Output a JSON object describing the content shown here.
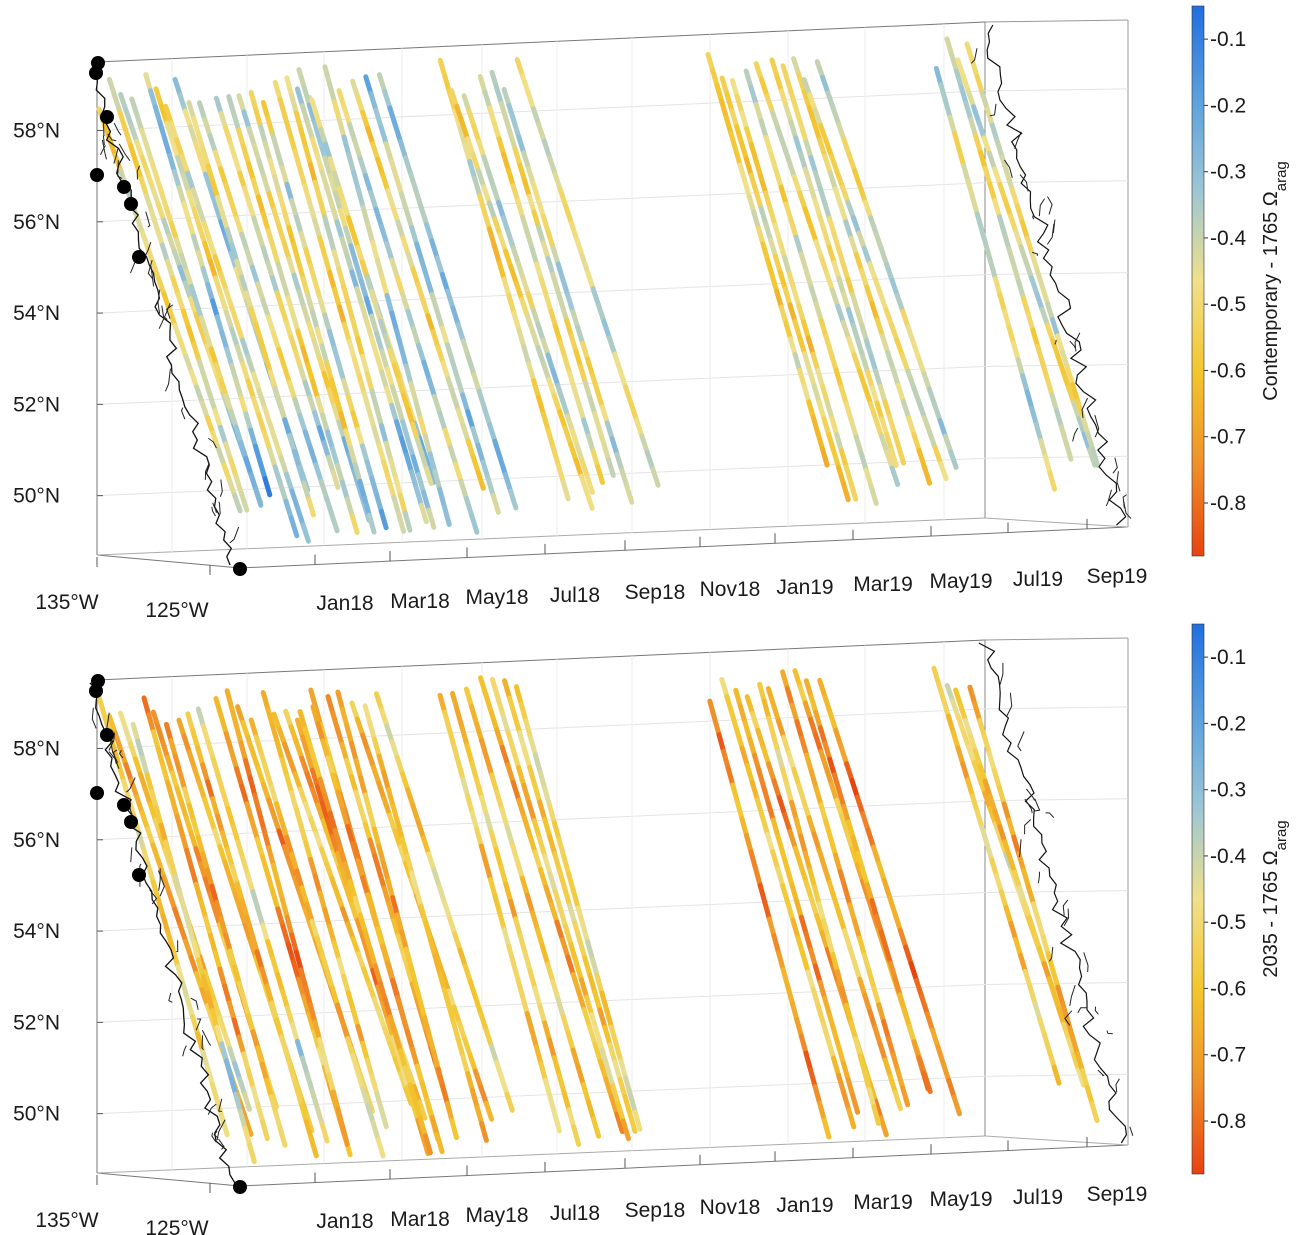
{
  "chart_data": [
    {
      "type": "scatter",
      "description_kind": "3-D ship-track time series of aragonite saturation change",
      "xlabel": "",
      "ylabel": "",
      "longitude_ticks": [
        "135°W",
        "125°W"
      ],
      "latitude_ticks": [
        "50°N",
        "52°N",
        "54°N",
        "56°N",
        "58°N"
      ],
      "latitude_values": [
        50,
        52,
        54,
        56,
        58
      ],
      "time_ticks": [
        "Jan18",
        "Mar18",
        "May18",
        "Jul18",
        "Sep18",
        "Nov18",
        "Jan19",
        "Mar19",
        "May19",
        "Jul19",
        "Sep19"
      ],
      "time_range": [
        "2017-09",
        "2019-09"
      ],
      "lat_range": [
        48.7,
        59.5
      ],
      "colorbar": {
        "label_main": "Contemporary - 1765 Ω",
        "label_sub": "arag",
        "ticks": [
          -0.1,
          -0.2,
          -0.3,
          -0.4,
          -0.5,
          -0.6,
          -0.7,
          -0.8
        ],
        "range": [
          -0.88,
          -0.05
        ],
        "colormap": [
          "#1f6fe0",
          "#5aa0de",
          "#9cc6d6",
          "#f0e08a",
          "#f3c52e",
          "#f0902a",
          "#e8420f"
        ]
      },
      "color_level": -0.42,
      "grid": true
    },
    {
      "type": "scatter",
      "description_kind": "3-D ship-track time series of aragonite saturation change",
      "xlabel": "",
      "ylabel": "",
      "longitude_ticks": [
        "135°W",
        "125°W"
      ],
      "latitude_ticks": [
        "50°N",
        "52°N",
        "54°N",
        "56°N",
        "58°N"
      ],
      "latitude_values": [
        50,
        52,
        54,
        56,
        58
      ],
      "time_ticks": [
        "Jan18",
        "Mar18",
        "May18",
        "Jul18",
        "Sep18",
        "Nov18",
        "Jan19",
        "Mar19",
        "May19",
        "Jul19",
        "Sep19"
      ],
      "time_range": [
        "2017-09",
        "2019-09"
      ],
      "lat_range": [
        48.7,
        59.5
      ],
      "colorbar": {
        "label_main": "2035 - 1765 Ω",
        "label_sub": "arag",
        "ticks": [
          -0.1,
          -0.2,
          -0.3,
          -0.4,
          -0.5,
          -0.6,
          -0.7,
          -0.8
        ],
        "range": [
          -0.88,
          -0.05
        ],
        "colormap": [
          "#1f6fe0",
          "#5aa0de",
          "#9cc6d6",
          "#f0e08a",
          "#f3c52e",
          "#f0902a",
          "#e8420f"
        ]
      },
      "color_level": -0.6,
      "grid": true
    }
  ]
}
